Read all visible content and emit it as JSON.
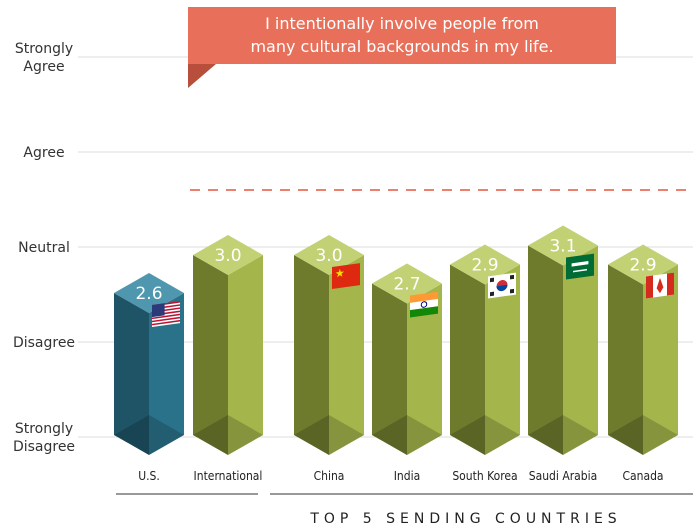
{
  "chart_data": {
    "type": "bar",
    "title": "I intentionally involve people from many cultural backgrounds in my life.",
    "title_lines": [
      "I intentionally involve people from",
      "many cultural backgrounds in my life."
    ],
    "y_axis": {
      "ticks": [
        {
          "value": 1,
          "lines": [
            "Strongly",
            "Disagree"
          ]
        },
        {
          "value": 2,
          "lines": [
            "Disagree"
          ]
        },
        {
          "value": 3,
          "lines": [
            "Neutral"
          ]
        },
        {
          "value": 4,
          "lines": [
            "Agree"
          ]
        },
        {
          "value": 5,
          "lines": [
            "Strongly",
            "Agree"
          ]
        }
      ],
      "ylim": [
        1,
        5
      ]
    },
    "categories": [
      "U.S.",
      "International",
      "China",
      "India",
      "South Korea",
      "Saudi Arabia",
      "Canada"
    ],
    "values": [
      2.6,
      3.0,
      3.0,
      2.7,
      2.9,
      3.1,
      2.9
    ],
    "value_labels": [
      "2.6",
      "3.0",
      "3.0",
      "2.7",
      "2.9",
      "3.1",
      "2.9"
    ],
    "flags": [
      "us-flag",
      null,
      "china-flag",
      "india-flag",
      "south-korea-flag",
      "saudi-arabia-flag",
      "canada-flag"
    ],
    "group_label": "TOP 5 SENDING COUNTRIES",
    "reference_line": {
      "value": 3.6,
      "style": "dashed",
      "color": "#e8553e"
    },
    "grid": true,
    "colors": {
      "us_front": "#2a728a",
      "us_side": "#1f5466",
      "us_top": "#4f97ae",
      "intl_front": "#a4b54b",
      "intl_side": "#6e7a2c",
      "intl_top": "#c3d175",
      "callout": "#e8705a",
      "callout_dark": "#b74f3c"
    }
  }
}
